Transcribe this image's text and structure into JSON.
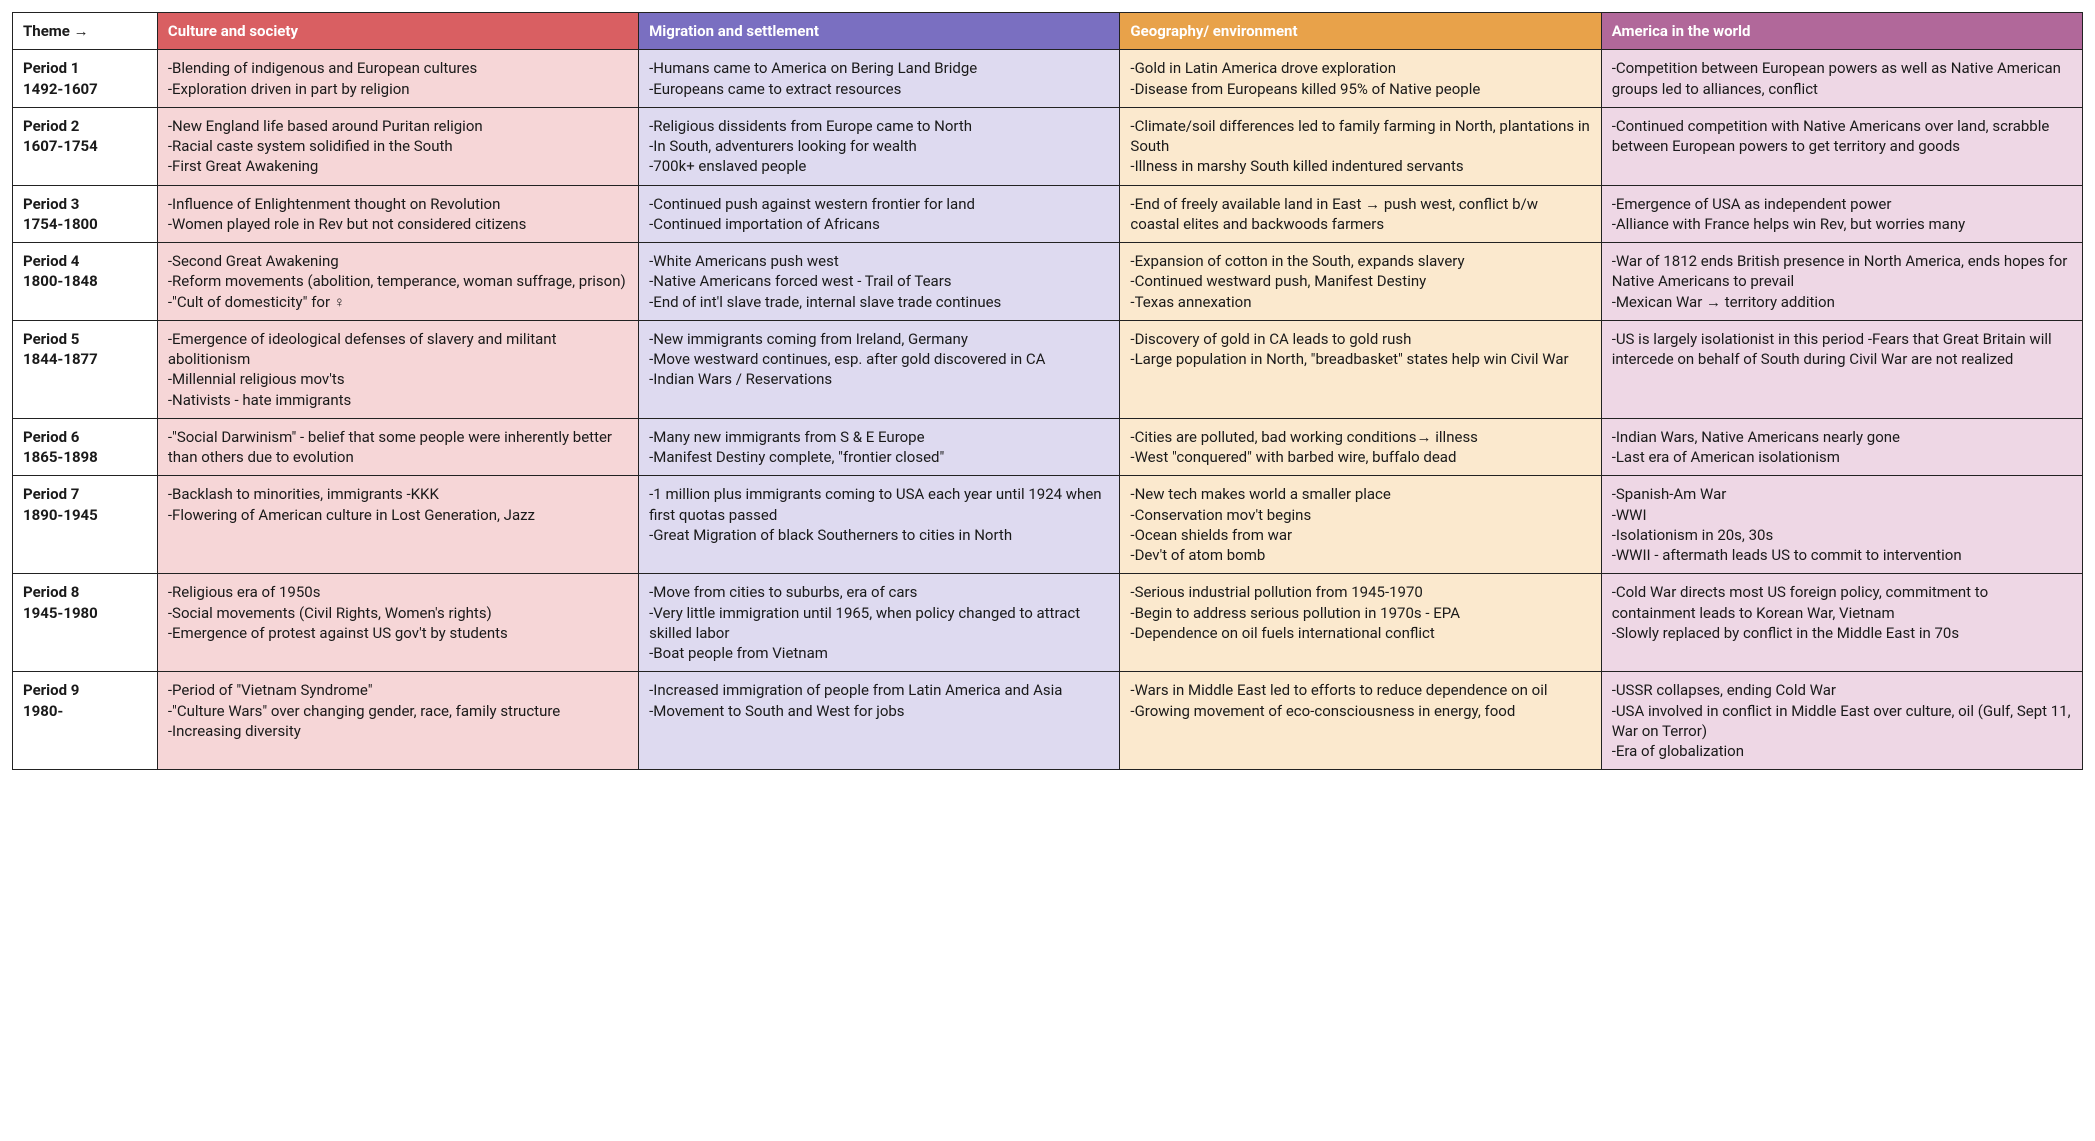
{
  "corner_label": "Theme →",
  "themes": [
    {
      "label": "Culture and society",
      "header_bg": "#d95f62",
      "header_fg": "#ffffff",
      "cell_bg": "#f6d6d7"
    },
    {
      "label": "Migration and settlement",
      "header_bg": "#7a6fc1",
      "header_fg": "#ffffff",
      "cell_bg": "#dedaf0"
    },
    {
      "label": "Geography/ environment",
      "header_bg": "#e8a24a",
      "header_fg": "#ffffff",
      "cell_bg": "#fbe9ce"
    },
    {
      "label": "America in the world",
      "header_bg": "#b1689a",
      "header_fg": "#ffffff",
      "cell_bg": "#eed7e5"
    }
  ],
  "periods": [
    {
      "name": "Period 1",
      "years": "1492-1607",
      "cells": [
        "-Blending of indigenous and European cultures\n-Exploration driven in part by religion",
        "-Humans came to America on Bering Land Bridge\n-Europeans came to extract resources",
        "-Gold in Latin America drove exploration\n-Disease from Europeans killed 95% of Native people",
        "-Competition between European powers as well as Native American groups led to alliances, conflict"
      ]
    },
    {
      "name": "Period 2",
      "years": "1607-1754",
      "cells": [
        "-New England life based around Puritan religion\n-Racial caste system solidified in the South\n-First Great Awakening",
        "-Religious dissidents from Europe came to North\n-In South, adventurers looking for wealth\n-700k+ enslaved people",
        "-Climate/soil differences led to family farming in North, plantations in South\n-Illness in marshy South killed indentured servants",
        "-Continued competition with Native Americans over land, scrabble between European powers to get territory and goods"
      ]
    },
    {
      "name": "Period 3",
      "years": "1754-1800",
      "cells": [
        "-Influence of Enlightenment thought on Revolution\n-Women played role in Rev but not considered citizens",
        "-Continued push against western frontier for land\n-Continued importation of Africans",
        "-End of freely available land in East → push west, conflict b/w coastal elites and backwoods farmers",
        "-Emergence of USA as independent power\n-Alliance with France helps win Rev, but worries many"
      ]
    },
    {
      "name": "Period 4",
      "years": "1800-1848",
      "cells": [
        "-Second Great Awakening\n-Reform movements (abolition, temperance, woman suffrage, prison)\n-\"Cult of domesticity\" for ♀",
        "-White Americans push west\n-Native Americans forced west - Trail of Tears\n-End of int'l slave trade, internal slave trade continues",
        "-Expansion of cotton in the South, expands slavery\n-Continued westward push, Manifest Destiny\n-Texas annexation",
        "-War of 1812 ends British presence in North America, ends hopes for Native Americans to prevail\n-Mexican War → territory addition"
      ]
    },
    {
      "name": "Period 5",
      "years": "1844-1877",
      "cells": [
        "-Emergence of ideological defenses of slavery and militant abolitionism\n-Millennial religious mov'ts\n-Nativists - hate immigrants",
        "-New immigrants coming from Ireland, Germany\n-Move westward continues, esp. after gold discovered in CA\n-Indian Wars / Reservations",
        "-Discovery of gold in CA leads to gold rush\n-Large population in North, \"breadbasket\" states help win Civil War",
        "-US is largely isolationist in this period -Fears that Great Britain will intercede on behalf of South during Civil War are not realized"
      ]
    },
    {
      "name": "Period 6",
      "years": "1865-1898",
      "cells": [
        "-\"Social Darwinism\" - belief that some people were inherently better than others due to evolution",
        "-Many new immigrants from S & E Europe\n-Manifest Destiny complete, \"frontier closed\"",
        "-Cities are polluted, bad working conditions→ illness\n-West \"conquered\" with barbed wire, buffalo dead",
        "-Indian Wars, Native Americans nearly gone\n-Last era of American isolationism"
      ]
    },
    {
      "name": "Period 7",
      "years": "1890-1945",
      "cells": [
        "-Backlash to minorities, immigrants -KKK\n-Flowering of American culture in Lost Generation, Jazz",
        "-1 million plus immigrants coming to USA each year until 1924 when first quotas passed\n-Great Migration of black Southerners to cities in North",
        "-New tech makes world a smaller place\n-Conservation mov't begins\n-Ocean shields from war\n-Dev't of atom bomb",
        "-Spanish-Am War\n-WWI\n-Isolationism in 20s, 30s\n-WWII - aftermath leads US to commit to intervention"
      ]
    },
    {
      "name": "Period 8",
      "years": "1945-1980",
      "cells": [
        "-Religious era of 1950s\n-Social movements (Civil Rights, Women's rights)\n-Emergence of protest against US gov't by students",
        "-Move from cities to suburbs, era of cars\n-Very little immigration until 1965, when policy changed to attract skilled labor\n-Boat people from Vietnam",
        "-Serious industrial pollution from 1945-1970\n-Begin to address serious pollution in 1970s - EPA\n-Dependence on oil fuels international conflict",
        "-Cold War directs most US foreign policy, commitment to containment leads to Korean War, Vietnam\n-Slowly replaced by conflict in the Middle East in 70s"
      ]
    },
    {
      "name": "Period 9",
      "years": "1980-",
      "cells": [
        "-Period of \"Vietnam Syndrome\"\n-\"Culture Wars\" over changing gender, race, family structure\n-Increasing diversity",
        "-Increased immigration of people from Latin America and Asia\n-Movement to South and West for jobs",
        "-Wars in Middle East led to efforts to reduce dependence on oil\n-Growing movement of eco-consciousness in energy, food",
        "-USSR collapses, ending Cold War\n-USA involved in conflict in Middle East over culture, oil (Gulf, Sept 11, War on Terror)\n-Era of globalization"
      ]
    }
  ]
}
